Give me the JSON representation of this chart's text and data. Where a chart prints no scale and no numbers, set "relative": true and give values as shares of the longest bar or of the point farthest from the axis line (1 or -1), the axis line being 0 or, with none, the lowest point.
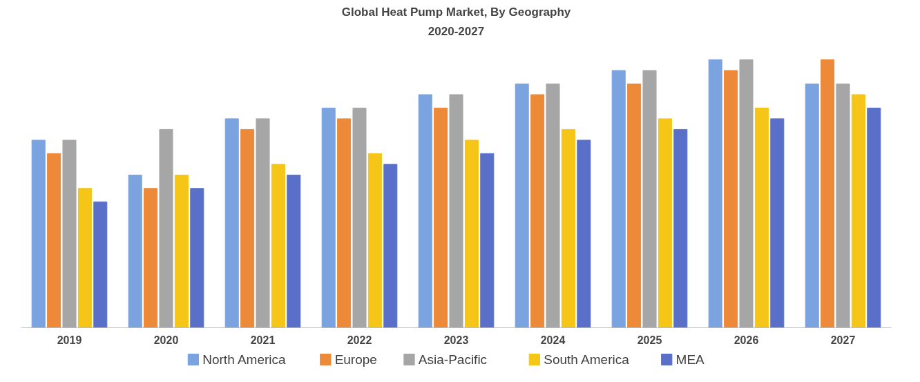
{
  "chart_data": {
    "type": "bar",
    "title": "Global Heat Pump Market, By Geography",
    "subtitle": "2020-2027",
    "relative": true,
    "categories": [
      "2019",
      "2020",
      "2021",
      "2022",
      "2023",
      "2024",
      "2025",
      "2026",
      "2027"
    ],
    "series": [
      {
        "name": "North America",
        "color": "#7ba3e0",
        "values": [
          0.7,
          0.57,
          0.78,
          0.82,
          0.87,
          0.91,
          0.96,
          1.0,
          0.91
        ]
      },
      {
        "name": "Europe",
        "color": "#ed8a3a",
        "values": [
          0.65,
          0.52,
          0.74,
          0.78,
          0.82,
          0.87,
          0.91,
          0.96,
          1.0
        ]
      },
      {
        "name": "Asia-Pacific",
        "color": "#a6a6a6",
        "values": [
          0.7,
          0.74,
          0.78,
          0.82,
          0.87,
          0.91,
          0.96,
          1.0,
          0.91
        ]
      },
      {
        "name": "South America",
        "color": "#f5c518",
        "values": [
          0.52,
          0.57,
          0.61,
          0.65,
          0.7,
          0.74,
          0.78,
          0.82,
          0.87
        ]
      },
      {
        "name": "MEA",
        "color": "#5a70c8",
        "values": [
          0.47,
          0.52,
          0.57,
          0.61,
          0.65,
          0.7,
          0.74,
          0.78,
          0.82
        ]
      }
    ],
    "legend": "bottom",
    "grid": false
  }
}
